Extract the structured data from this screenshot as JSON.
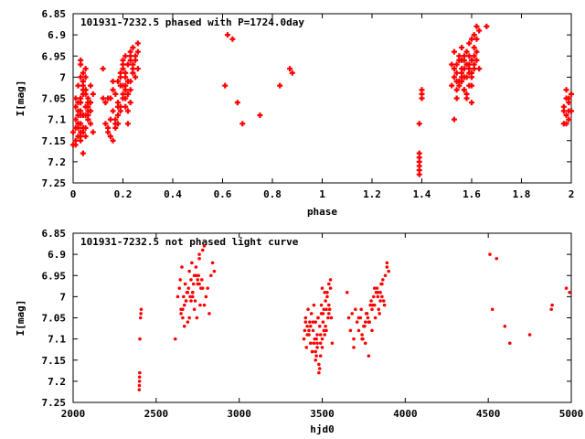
{
  "colors": {
    "points": "#ff0000",
    "axes": "#000000",
    "background": "#ffffff"
  },
  "chart_data": [
    {
      "type": "scatter",
      "title": "101931-7232.5 phased with P=1724.0day",
      "xlabel": "phase",
      "ylabel": "I[mag]",
      "xlim": [
        0,
        2
      ],
      "ylim": [
        6.85,
        7.25
      ],
      "y_inverted": true,
      "grid": false,
      "marker": "plus",
      "xticks": [
        "0",
        "0.2",
        "0.4",
        "0.6",
        "0.8",
        "1",
        "1.2",
        "1.4",
        "1.6",
        "1.8",
        "2"
      ],
      "yticks": [
        "6.85",
        "6.9",
        "6.95",
        "7",
        "7.05",
        "7.1",
        "7.15",
        "7.2",
        "7.25"
      ],
      "series": [
        {
          "x": [
            0.0,
            0.01,
            0.01,
            0.02,
            0.02,
            0.03,
            0.03,
            0.04,
            0.04,
            0.05,
            0.05,
            0.06,
            0.06,
            0.07,
            0.01,
            0.02,
            0.03,
            0.04,
            0.05,
            0.06,
            0.02,
            0.03,
            0.04,
            0.05,
            0.03,
            0.04,
            0.05,
            0.06,
            0.07,
            0.02,
            0.03,
            0.04,
            0.05,
            0.06,
            0.07,
            0.08,
            0.02,
            0.03,
            0.04,
            0.03,
            0.05,
            0.06,
            0.07,
            0.08,
            0.0,
            0.01,
            0.01,
            0.03,
            0.04,
            0.02,
            0.05,
            0.06,
            0.04,
            0.05,
            0.06,
            0.01,
            0.02,
            0.03,
            0.04,
            0.03,
            0.12,
            0.13,
            0.14,
            0.14,
            0.15,
            0.15,
            0.16,
            0.16,
            0.17,
            0.17,
            0.18,
            0.18,
            0.19,
            0.19,
            0.2,
            0.2,
            0.21,
            0.21,
            0.22,
            0.22,
            0.23,
            0.23,
            0.24,
            0.24,
            0.25,
            0.25,
            0.26,
            0.26,
            0.2,
            0.21,
            0.22,
            0.23,
            0.24,
            0.19,
            0.2,
            0.21,
            0.22,
            0.23,
            0.18,
            0.19,
            0.2,
            0.21,
            0.22,
            0.23,
            0.24,
            0.17,
            0.18,
            0.22,
            0.16,
            0.15,
            0.13,
            0.16,
            0.19,
            0.17,
            0.21,
            0.23,
            0.2,
            0.24,
            0.25,
            0.26,
            0.22,
            0.18,
            0.12,
            0.14,
            0.21,
            0.61,
            0.62,
            0.64,
            0.66,
            0.68,
            0.75,
            0.83,
            0.87,
            0.88,
            1.39,
            1.39,
            1.39,
            1.39,
            1.39,
            1.39,
            1.39,
            1.4,
            1.4,
            1.4,
            1.52,
            1.53,
            1.53,
            1.54,
            1.54,
            1.55,
            1.55,
            1.56,
            1.56,
            1.57,
            1.57,
            1.58,
            1.58,
            1.59,
            1.59,
            1.6,
            1.6,
            1.61,
            1.61,
            1.62,
            1.62,
            1.63,
            1.66,
            1.54,
            1.55,
            1.56,
            1.57,
            1.58,
            1.59,
            1.6,
            1.61,
            1.55,
            1.56,
            1.57,
            1.58,
            1.59,
            1.6,
            1.61,
            1.53,
            1.54,
            1.56,
            1.58,
            1.59,
            1.6,
            1.62,
            1.57,
            1.55,
            1.61,
            1.53,
            1.58,
            1.63,
            1.54,
            1.56,
            1.59,
            1.52,
            1.6,
            1.57,
            1.55,
            1.62,
            1.97,
            1.97,
            1.98,
            1.98,
            1.99,
            1.99,
            2.0,
            1.98,
            1.99,
            2.0,
            1.97,
            1.98,
            1.99
          ],
          "y": [
            7.13,
            7.1,
            7.15,
            7.08,
            7.12,
            7.06,
            7.11,
            7.04,
            7.09,
            7.07,
            7.12,
            7.05,
            7.1,
            7.08,
            7.16,
            7.14,
            7.09,
            7.13,
            7.03,
            7.06,
            7.02,
            7.0,
            6.99,
            6.98,
            6.97,
            7.01,
            7.04,
            7.07,
            7.11,
            7.06,
            7.08,
            7.12,
            7.14,
            7.1,
            7.06,
            7.04,
            7.11,
            7.05,
            7.03,
            7.13,
            7.0,
            7.09,
            7.02,
            7.13,
            7.16,
            7.07,
            7.05,
            7.14,
            7.18,
            7.11,
            7.09,
            7.06,
            7.01,
            7.03,
            7.08,
            7.12,
            7.09,
            7.15,
            7.02,
            6.96,
            7.05,
            7.11,
            7.05,
            7.12,
            7.1,
            7.14,
            7.08,
            7.15,
            7.1,
            7.04,
            7.11,
            7.01,
            7.08,
            6.99,
            7.05,
            6.96,
            7.02,
            6.95,
            7.04,
            6.97,
            7.01,
            6.94,
            6.99,
            6.93,
            7.0,
            6.96,
            6.92,
            6.98,
            7.02,
            7.05,
            7.08,
            7.03,
            6.99,
            7.0,
            6.98,
            7.03,
            6.97,
            7.06,
            7.07,
            7.02,
            7.04,
            6.99,
            7.01,
            6.95,
            6.98,
            7.12,
            7.09,
            7.11,
            7.03,
            7.05,
            7.06,
            7.01,
            7.07,
            7.11,
            7.0,
            6.96,
            6.97,
            6.97,
            6.95,
            6.94,
            7.04,
            7.06,
            6.98,
            7.13,
            7.07,
            7.02,
            6.9,
            6.91,
            7.06,
            7.11,
            7.09,
            7.02,
            6.98,
            6.99,
            7.19,
            7.2,
            7.21,
            7.22,
            7.23,
            7.18,
            7.11,
            7.04,
            7.05,
            7.03,
            7.02,
            7.0,
            6.98,
            7.03,
            6.97,
            7.01,
            6.95,
            6.99,
            6.93,
            6.98,
            6.96,
            7.0,
            6.94,
            6.97,
            6.92,
            6.96,
            6.91,
            6.93,
            6.9,
            6.94,
            6.88,
            6.98,
            6.88,
            7.01,
            7.02,
            7.0,
            7.03,
            6.97,
            6.99,
            7.02,
            6.95,
            6.96,
            6.98,
            7.0,
            6.97,
            7.02,
            6.99,
            6.97,
            6.94,
            7.05,
            6.96,
            7.04,
            6.98,
            7.0,
            6.96,
            6.95,
            6.96,
            6.98,
            7.1,
            7.05,
            6.89,
            6.99,
            7.01,
            6.95,
            6.97,
            7.06,
            7.03,
            7.01,
            6.91,
            7.11,
            7.07,
            7.09,
            7.05,
            7.08,
            7.06,
            7.04,
            7.03,
            7.1,
            7.08,
            7.08,
            7.11,
            7.05
          ]
        }
      ]
    },
    {
      "type": "scatter",
      "title": "101931-7232.5 not phased light curve",
      "xlabel": "hjd0",
      "ylabel": "I[mag]",
      "xlim": [
        2000,
        5000
      ],
      "ylim": [
        6.85,
        7.25
      ],
      "y_inverted": true,
      "grid": false,
      "marker": "dot",
      "xticks": [
        "2000",
        "2500",
        "3000",
        "3500",
        "4000",
        "4500",
        "5000"
      ],
      "yticks": [
        "6.85",
        "6.9",
        "6.95",
        "7",
        "7.05",
        "7.1",
        "7.15",
        "7.2",
        "7.25"
      ],
      "series": [
        {
          "x": [
            2398,
            2399,
            2400,
            2400,
            2401,
            2402,
            2406,
            2408,
            2410,
            2615,
            2630,
            2640,
            2645,
            2650,
            2655,
            2660,
            2665,
            2670,
            2675,
            2680,
            2685,
            2690,
            2695,
            2700,
            2705,
            2710,
            2715,
            2720,
            2725,
            2730,
            2735,
            2740,
            2745,
            2750,
            2755,
            2760,
            2765,
            2770,
            2775,
            2780,
            2790,
            2800,
            2810,
            2820,
            2830,
            2840,
            2850,
            2660,
            2680,
            2700,
            2720,
            2740,
            2760,
            2780,
            2670,
            2690,
            2710,
            2730,
            2750,
            2650,
            2760,
            2790,
            2720,
            3390,
            3395,
            3400,
            3405,
            3410,
            3415,
            3420,
            3425,
            3430,
            3435,
            3440,
            3445,
            3450,
            3455,
            3460,
            3465,
            3470,
            3475,
            3480,
            3485,
            3490,
            3495,
            3500,
            3505,
            3510,
            3515,
            3520,
            3525,
            3530,
            3535,
            3540,
            3545,
            3550,
            3555,
            3560,
            3400,
            3420,
            3440,
            3460,
            3480,
            3500,
            3520,
            3540,
            3410,
            3430,
            3450,
            3470,
            3490,
            3510,
            3530,
            3550,
            3445,
            3465,
            3485,
            3505,
            3525,
            3475,
            3495,
            3515,
            3460,
            3500,
            3540,
            3490,
            3470,
            3650,
            3660,
            3670,
            3680,
            3690,
            3700,
            3710,
            3720,
            3730,
            3740,
            3750,
            3760,
            3770,
            3780,
            3790,
            3800,
            3810,
            3820,
            3830,
            3840,
            3850,
            3860,
            3870,
            3880,
            3890,
            3900,
            3735,
            3755,
            3775,
            3795,
            3815,
            3835,
            3855,
            3875,
            3765,
            3785,
            3805,
            3825,
            3845,
            3865,
            3745,
            3800,
            3860,
            3720,
            3835,
            3690,
            3780,
            3890,
            3815,
            3740,
            3850,
            3760,
            4510,
            4550,
            4600,
            4630,
            4750,
            4880,
            4885,
            4970,
            4990,
            4525
          ],
          "y": [
            7.22,
            7.21,
            7.19,
            7.2,
            7.18,
            7.1,
            7.05,
            7.04,
            7.03,
            7.1,
            7.0,
            6.98,
            6.96,
            7.03,
            6.93,
            7.05,
            7.0,
            7.02,
            6.97,
            7.01,
            6.99,
            7.06,
            6.98,
            6.94,
            7.0,
            6.96,
            6.92,
            6.99,
            6.97,
            6.95,
            7.01,
            6.93,
            7.05,
            6.97,
            6.95,
            6.91,
            7.02,
            6.98,
            6.96,
            6.89,
            7.02,
            7.0,
            6.98,
            7.04,
            6.95,
            6.92,
            6.94,
            7.03,
            7.01,
            7.05,
            6.99,
            6.95,
            6.97,
            6.98,
            7.07,
            6.99,
            7.01,
            7.03,
            6.96,
            7.04,
            6.9,
            6.88,
            7.0,
            7.1,
            7.08,
            7.05,
            7.12,
            7.07,
            7.03,
            7.09,
            7.06,
            7.11,
            7.04,
            7.13,
            7.08,
            7.02,
            7.1,
            7.06,
            7.14,
            7.09,
            7.05,
            7.16,
            7.07,
            7.11,
            7.04,
            7.12,
            7.06,
            7.03,
            7.09,
            7.01,
            7.08,
            6.99,
            7.05,
            6.97,
            7.03,
            6.96,
            7.05,
            7.11,
            7.06,
            7.08,
            7.13,
            7.15,
            7.18,
            7.1,
            7.07,
            7.02,
            7.09,
            7.07,
            7.11,
            7.12,
            7.14,
            7.08,
            7.0,
            6.98,
            7.06,
            7.1,
            7.17,
            7.04,
            7.03,
            7.05,
            7.02,
            6.99,
            7.13,
            6.98,
            7.04,
            7.09,
            7.11,
            6.99,
            7.05,
            7.08,
            7.04,
            7.1,
            7.03,
            7.06,
            7.08,
            7.05,
            7.09,
            7.07,
            7.11,
            7.04,
            7.06,
            7.02,
            7.08,
            7.0,
            7.05,
            6.98,
            7.03,
            6.99,
            6.97,
            7.01,
            6.95,
            6.92,
            6.94,
            7.03,
            7.07,
            7.05,
            7.01,
            6.98,
            7.0,
            6.97,
            7.02,
            7.04,
            7.06,
            7.02,
            6.99,
            7.04,
            6.96,
            7.1,
            7.03,
            7.0,
            7.05,
            6.99,
            7.12,
            7.14,
            6.93,
            7.02,
            7.1,
            7.01,
            7.06,
            6.9,
            6.91,
            7.07,
            7.11,
            7.09,
            7.03,
            7.02,
            6.98,
            6.99,
            7.03
          ]
        }
      ]
    }
  ]
}
